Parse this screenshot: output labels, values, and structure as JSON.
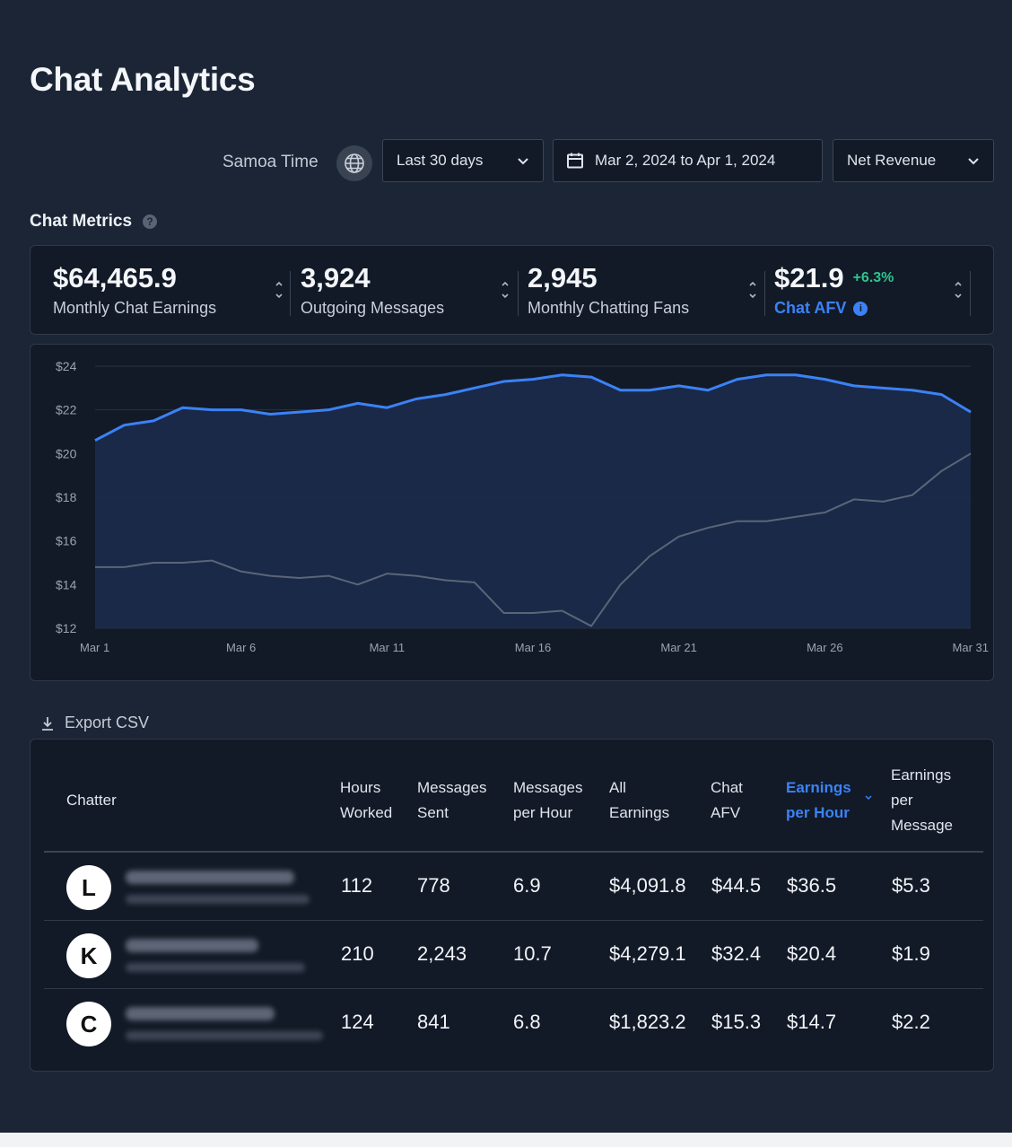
{
  "page": {
    "title": "Chat Analytics"
  },
  "filters": {
    "timezone_label": "Samoa Time",
    "range_label": "Last 30 days",
    "date_range": "Mar 2, 2024 to Apr 1, 2024",
    "metric_label": "Net Revenue"
  },
  "section": {
    "title": "Chat Metrics"
  },
  "metrics": [
    {
      "value": "$64,465.9",
      "label": "Monthly Chat Earnings"
    },
    {
      "value": "3,924",
      "label": "Outgoing Messages"
    },
    {
      "value": "2,945",
      "label": "Monthly Chatting Fans"
    },
    {
      "value": "$21.9",
      "delta": "+6.3%",
      "label": "Chat AFV"
    }
  ],
  "chart_data": {
    "type": "area",
    "x": [
      "Mar 1",
      "Mar 2",
      "Mar 3",
      "Mar 4",
      "Mar 5",
      "Mar 6",
      "Mar 7",
      "Mar 8",
      "Mar 9",
      "Mar 10",
      "Mar 11",
      "Mar 12",
      "Mar 13",
      "Mar 14",
      "Mar 15",
      "Mar 16",
      "Mar 17",
      "Mar 18",
      "Mar 19",
      "Mar 20",
      "Mar 21",
      "Mar 22",
      "Mar 23",
      "Mar 24",
      "Mar 25",
      "Mar 26",
      "Mar 27",
      "Mar 28",
      "Mar 29",
      "Mar 30",
      "Mar 31"
    ],
    "x_tick_labels": [
      "Mar 1",
      "Mar 6",
      "Mar 11",
      "Mar 16",
      "Mar 21",
      "Mar 26",
      "Mar 31"
    ],
    "series": [
      {
        "values": [
          20.6,
          21.3,
          21.5,
          22.1,
          22.0,
          22.0,
          21.8,
          21.9,
          22.0,
          22.3,
          22.1,
          22.5,
          22.7,
          23.0,
          23.3,
          23.4,
          23.6,
          23.5,
          22.9,
          22.9,
          23.1,
          22.9,
          23.4,
          23.6,
          23.6,
          23.4,
          23.1,
          23.0,
          22.9,
          22.7,
          21.9
        ],
        "color": "#3b82f6"
      },
      {
        "values": [
          14.8,
          14.8,
          15.0,
          15.0,
          15.1,
          14.6,
          14.4,
          14.3,
          14.4,
          14.0,
          14.5,
          14.4,
          14.2,
          14.1,
          12.7,
          12.7,
          12.8,
          12.1,
          14.0,
          15.3,
          16.2,
          16.6,
          16.9,
          16.9,
          17.1,
          17.3,
          17.9,
          17.8,
          18.1,
          19.2,
          20.0
        ],
        "color": "#5b6577"
      }
    ],
    "y_tick_labels": [
      "$12",
      "$14",
      "$16",
      "$18",
      "$20",
      "$22",
      "$24"
    ],
    "ylim": [
      12,
      24
    ],
    "grid": true
  },
  "export": {
    "label": "Export CSV"
  },
  "table": {
    "headers": {
      "chatter": "Chatter",
      "hours_1": "Hours",
      "hours_2": "Worked",
      "msgs_1": "Messages",
      "msgs_2": "Sent",
      "mph_1": "Messages",
      "mph_2": "per Hour",
      "all_1": "All",
      "all_2": "Earnings",
      "afv_1": "Chat",
      "afv_2": "AFV",
      "eph_1": "Earnings",
      "eph_2": "per Hour",
      "epm_1": "Earnings",
      "epm_2": "per",
      "epm_3": "Message"
    },
    "rows": [
      {
        "initial": "L",
        "hours": "112",
        "messages": "778",
        "per_hour": "6.9",
        "earnings": "$4,091.8",
        "afv": "$44.5",
        "eph": "$36.5",
        "epm": "$5.3"
      },
      {
        "initial": "K",
        "hours": "210",
        "messages": "2,243",
        "per_hour": "10.7",
        "earnings": "$4,279.1",
        "afv": "$32.4",
        "eph": "$20.4",
        "epm": "$1.9"
      },
      {
        "initial": "C",
        "hours": "124",
        "messages": "841",
        "per_hour": "6.8",
        "earnings": "$1,823.2",
        "afv": "$15.3",
        "eph": "$14.7",
        "epm": "$2.2"
      }
    ]
  },
  "colors": {
    "accent": "#3b82f6",
    "positive": "#2fc48d",
    "card_bg": "#121a27",
    "page_bg": "#1c2535"
  }
}
